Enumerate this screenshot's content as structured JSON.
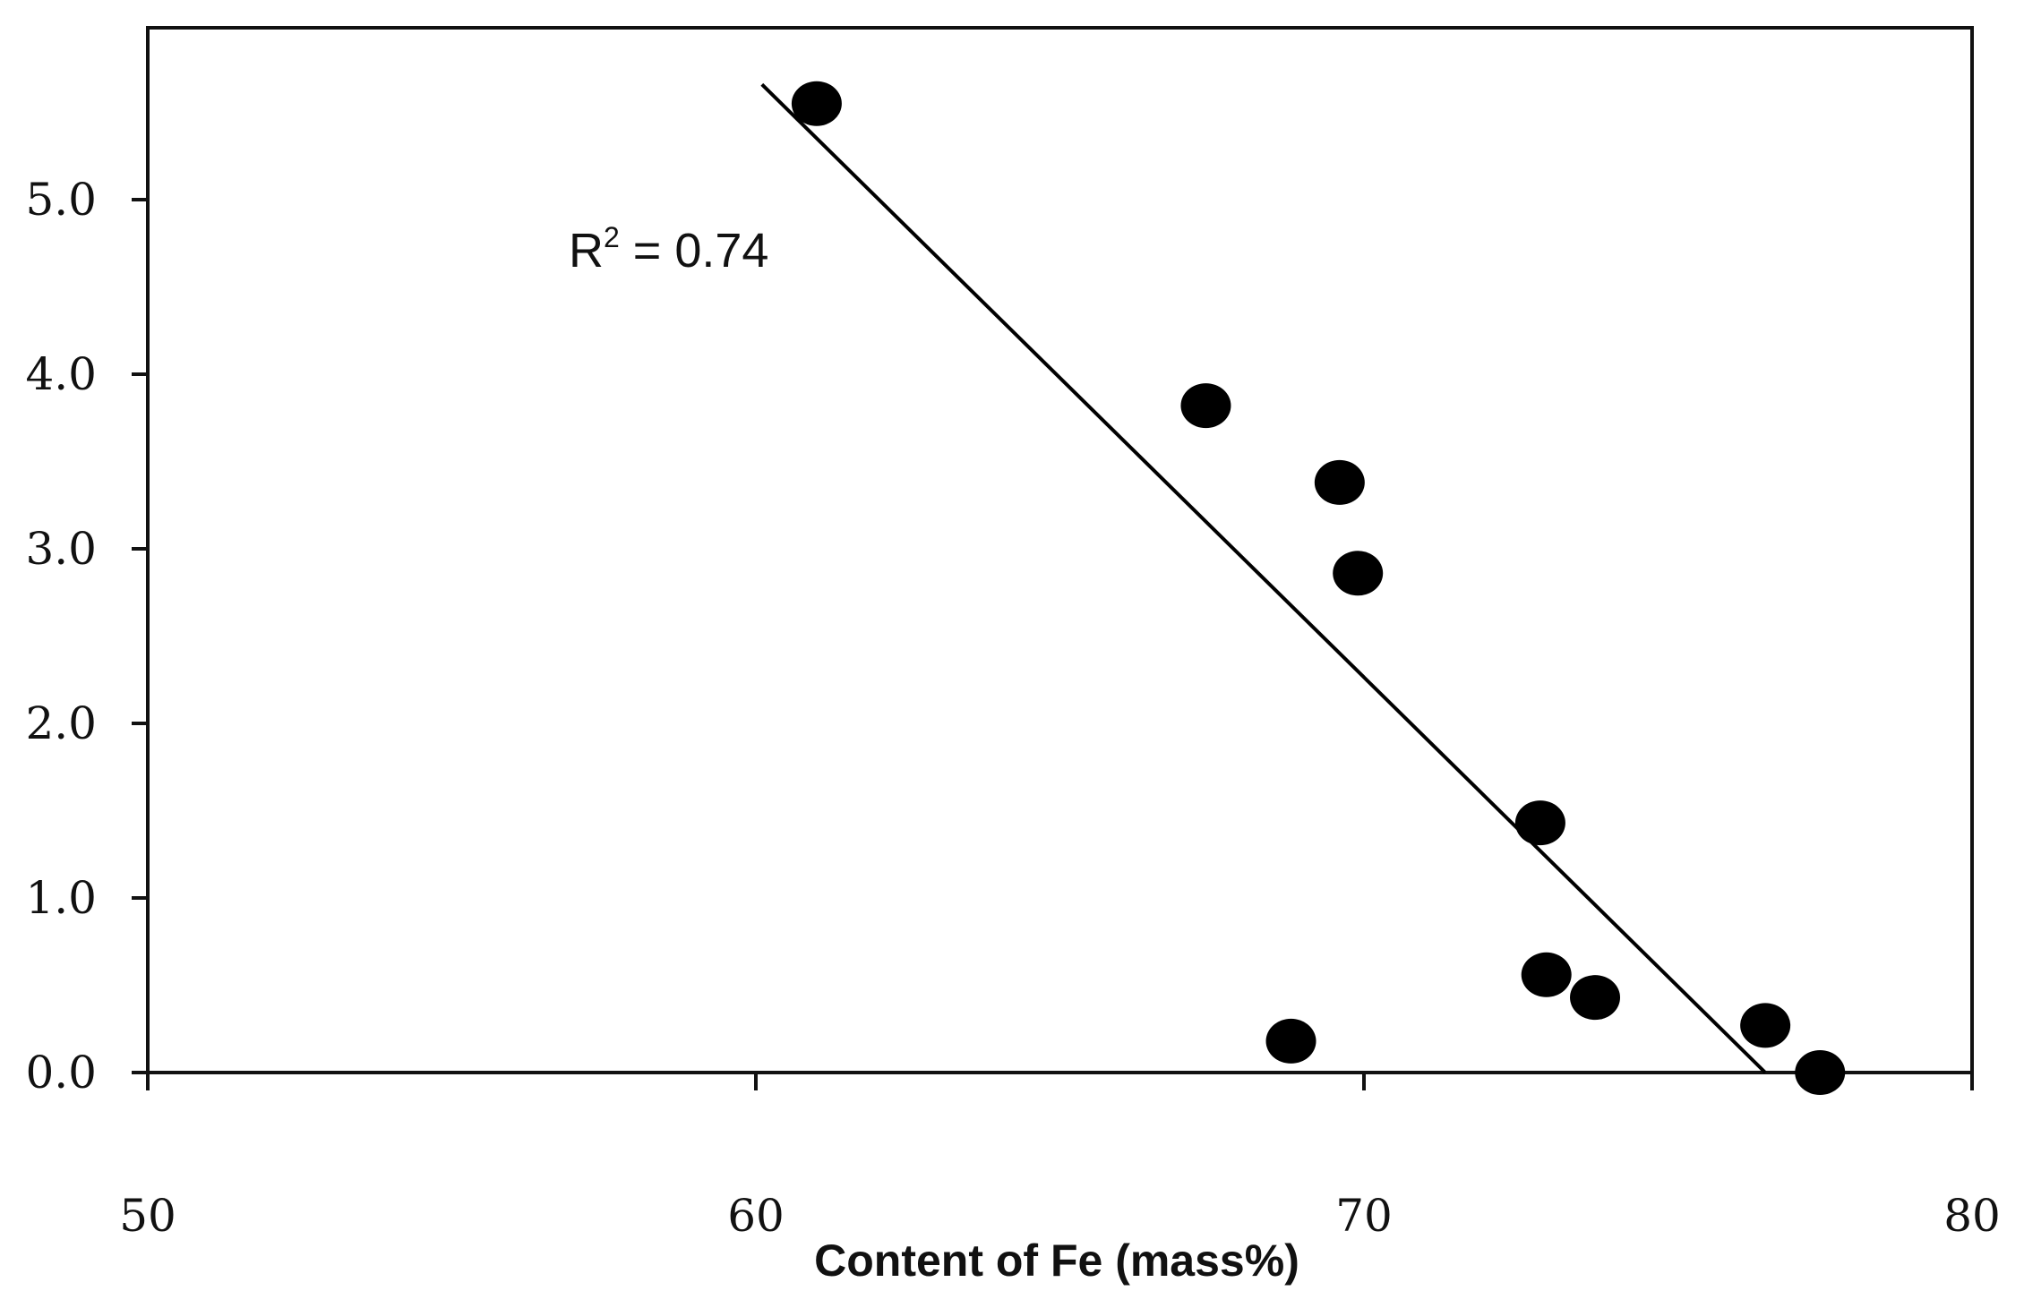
{
  "chart_data": {
    "type": "scatter",
    "title": "",
    "xlabel": "Content of Fe (mass%)",
    "ylabel": "",
    "xlim": [
      50,
      80
    ],
    "ylim": [
      0,
      6
    ],
    "x_ticks": [
      50,
      60,
      70,
      80
    ],
    "x_tick_labels": [
      "50",
      "60",
      "70",
      "80"
    ],
    "y_ticks": [
      0,
      1,
      2,
      3,
      4,
      5
    ],
    "y_tick_labels": [
      "0.0",
      "1.0",
      "2.0",
      "3.0",
      "4.0",
      "5.0"
    ],
    "grid": false,
    "legend": "none",
    "series": [
      {
        "points": [
          {
            "x": 61.0,
            "y": 5.55
          },
          {
            "x": 67.4,
            "y": 3.82
          },
          {
            "x": 69.6,
            "y": 3.38
          },
          {
            "x": 69.9,
            "y": 2.86
          },
          {
            "x": 68.8,
            "y": 0.18
          },
          {
            "x": 72.9,
            "y": 1.43
          },
          {
            "x": 73.0,
            "y": 0.56
          },
          {
            "x": 73.8,
            "y": 0.43
          },
          {
            "x": 76.6,
            "y": 0.27
          },
          {
            "x": 77.5,
            "y": 0.0
          }
        ],
        "color": "#000000"
      }
    ],
    "trendline": {
      "type": "linear",
      "x": [
        60.1,
        76.6
      ],
      "y": [
        5.66,
        0.0
      ],
      "color": "#000000"
    },
    "annotation": {
      "r_label": "R",
      "r_superscript": "2",
      "value_text": " = 0.74"
    }
  }
}
